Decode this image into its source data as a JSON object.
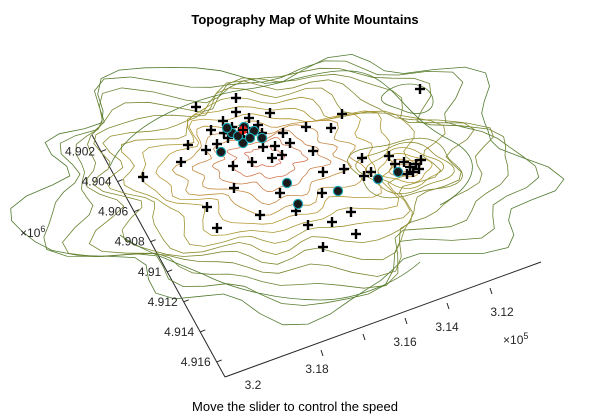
{
  "chart_data": {
    "type": "contour",
    "title": "Topography Map of White Mountains",
    "x_axis": {
      "ticks": [
        "3.12",
        "3.14",
        "3.16",
        "3.18",
        "3.2"
      ],
      "multiplier": "10",
      "exponent": "5",
      "range": [
        319,
        312.6
      ]
    },
    "y_axis": {
      "ticks": [
        "4.902",
        "4.904",
        "4.906",
        "4.908",
        "4.91",
        "4.912",
        "4.914",
        "4.916"
      ],
      "multiplier": "10",
      "exponent": "6",
      "range": [
        4.9175,
        4.901
      ]
    },
    "markers": {
      "peak_marker": "red-star",
      "plus_count": 60,
      "circle_count": 14
    },
    "colors": {
      "low_contour": "#4f7a2f",
      "mid_contour": "#b59a32",
      "high_contour": "#d9735a",
      "circle_fill": "#1a1a1a",
      "circle_edge": "#1ea6b4",
      "peak": "#e8221c"
    }
  },
  "footer": {
    "instruction": "Move the slider to control the speed"
  }
}
